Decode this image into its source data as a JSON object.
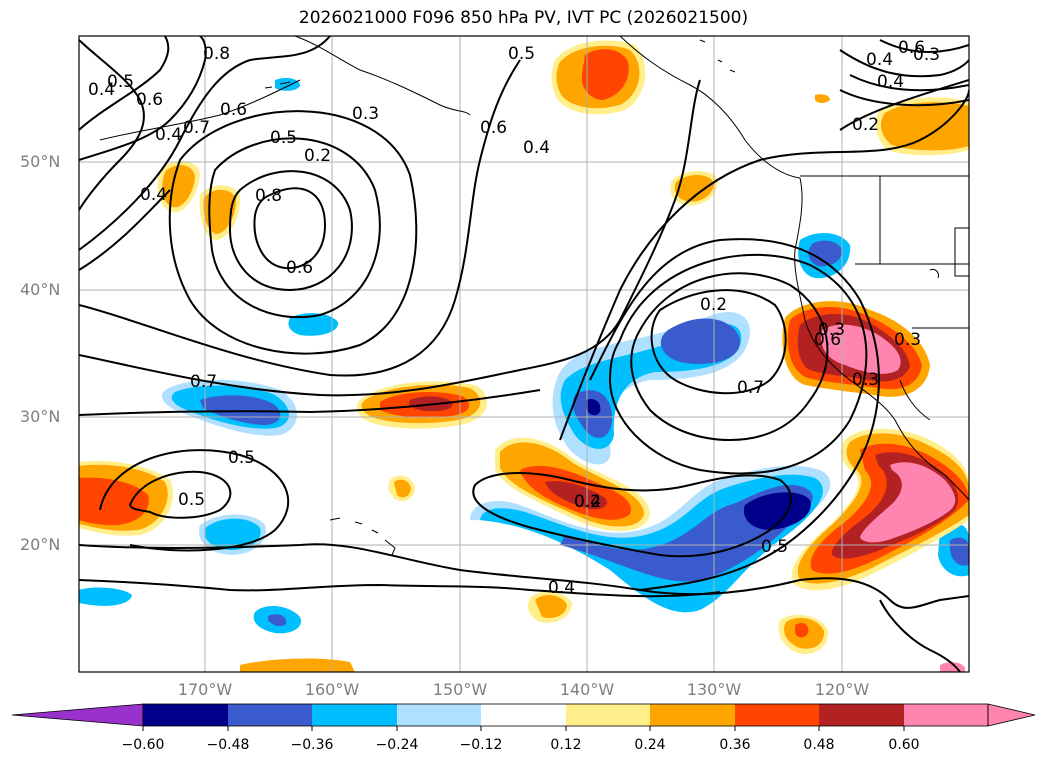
{
  "title": "2026021000 F096 850 hPa PV, IVT PC (2026021500)",
  "lat_labels": [
    "50°N",
    "40°N",
    "30°N",
    "20°N"
  ],
  "lon_labels": [
    "170°W",
    "160°W",
    "150°W",
    "140°W",
    "130°W",
    "120°W"
  ],
  "contour_labels": [
    "0.8",
    "0.4",
    "0.5",
    "0.6",
    "0.7",
    "0.6",
    "0.5",
    "0.4",
    "0.4",
    "0.3",
    "0.2",
    "0.8",
    "0.6",
    "0.7",
    "0.5",
    "0.5",
    "0.6",
    "0.5",
    "0.4",
    "0.2",
    "0.7",
    "0.6",
    "0.3",
    "0.4",
    "0.5",
    "0.4",
    "0.6",
    "0.4",
    "0.3",
    "0.4",
    "0.2",
    "0.2",
    "0.3",
    "0.3"
  ],
  "colorbar": {
    "ticks": [
      "−0.60",
      "−0.48",
      "−0.36",
      "−0.24",
      "−0.12",
      "0.12",
      "0.24",
      "0.36",
      "0.48",
      "0.60"
    ],
    "colors": {
      "under": "#9932cc",
      "bins": [
        "#00008b",
        "#3a5bcc",
        "#00bfff",
        "#b0e0ff",
        "#ffffff",
        "#ffee8a",
        "#ffa500",
        "#ff4500",
        "#b22222",
        "#ff85b0"
      ],
      "over": "#ff85b0"
    }
  }
}
